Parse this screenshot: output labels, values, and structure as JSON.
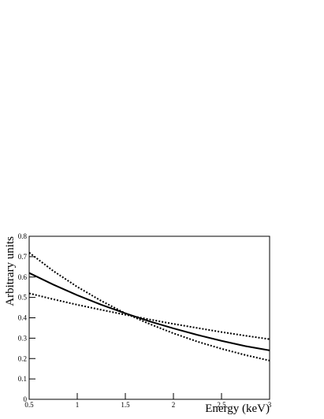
{
  "chart_data": {
    "type": "line",
    "x_label": "Energy (keV)",
    "y_label": "Arbitrary units",
    "x": [
      0.5,
      0.75,
      1,
      1.25,
      1.5,
      1.75,
      2,
      2.25,
      2.5,
      2.75,
      3
    ],
    "series": [
      {
        "color": "#000000",
        "style": "solid",
        "values": [
          0.62,
          0.563,
          0.511,
          0.464,
          0.422,
          0.383,
          0.348,
          0.316,
          0.287,
          0.261,
          0.24
        ]
      },
      {
        "color": "#000000",
        "style": "dotted",
        "values": [
          0.72,
          0.63,
          0.552,
          0.483,
          0.422,
          0.37,
          0.324,
          0.283,
          0.248,
          0.217,
          0.19
        ]
      },
      {
        "color": "#000000",
        "style": "dotted",
        "values": [
          0.52,
          0.491,
          0.464,
          0.439,
          0.415,
          0.392,
          0.37,
          0.35,
          0.33,
          0.312,
          0.295
        ]
      }
    ],
    "xlim": [
      0.5,
      3
    ],
    "xticks": [
      0.5,
      1,
      1.5,
      2,
      2.5,
      3
    ],
    "ylim": [
      0,
      0.8
    ],
    "yticks": [
      0,
      0.1,
      0.2,
      0.3,
      0.4,
      0.5,
      0.6,
      0.7,
      0.8
    ],
    "grid": false
  }
}
